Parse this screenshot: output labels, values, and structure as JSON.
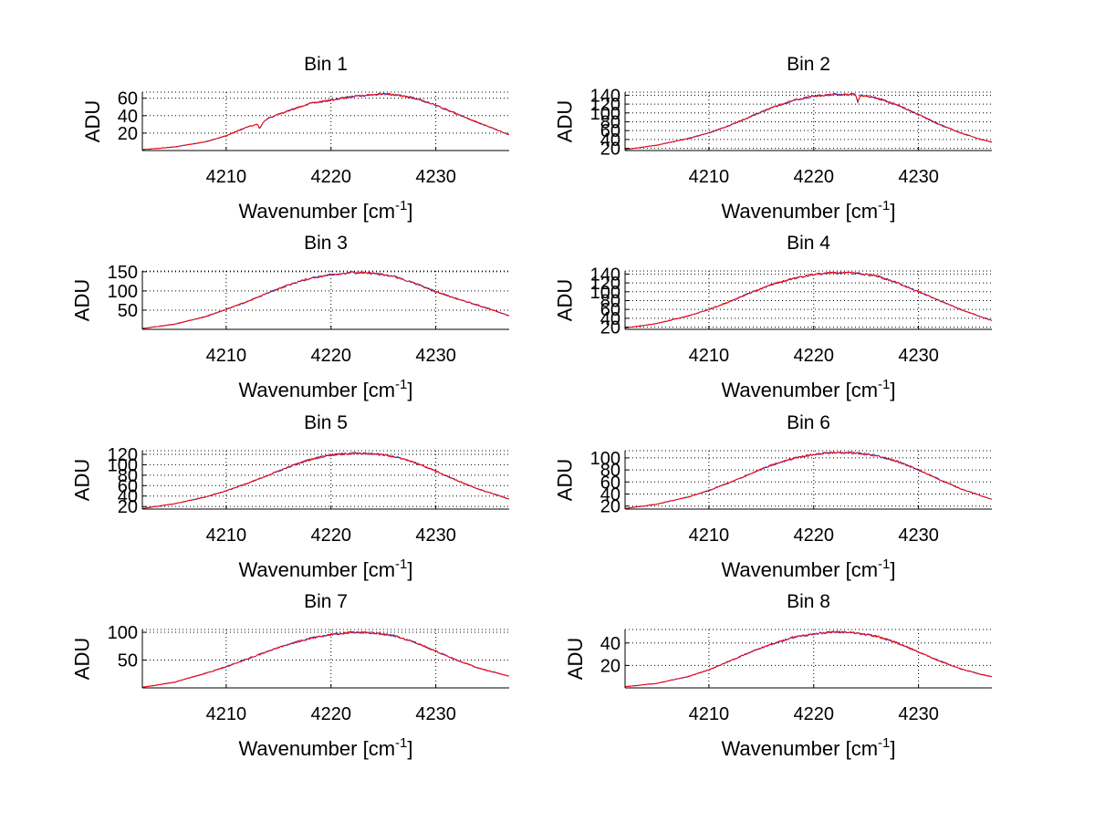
{
  "chart_data": [
    {
      "type": "line",
      "title": "Bin 1",
      "xlabel_base": "Wavenumber [cm",
      "xlabel_sup": "-1",
      "xlabel_close": "]",
      "ylabel": "ADU",
      "xlim": [
        4202,
        4237
      ],
      "ylim": [
        0,
        67
      ],
      "xticks": [
        4210,
        4220,
        4230
      ],
      "yticks": [
        20,
        40,
        60
      ],
      "grid": true,
      "x": [
        4202,
        4205,
        4208,
        4210,
        4212,
        4213,
        4213.2,
        4213.5,
        4214,
        4216,
        4218,
        4220,
        4222,
        4224,
        4225,
        4226,
        4228,
        4230,
        4232,
        4234,
        4236,
        4237
      ],
      "y": [
        1,
        4,
        10,
        17,
        27,
        30,
        25,
        32,
        37,
        46,
        54,
        58,
        62,
        64,
        65,
        64,
        60,
        52,
        42,
        32,
        23,
        18
      ],
      "series": [
        {
          "name": "",
          "color": "#1f3fd6"
        },
        {
          "name": "",
          "color": "#ff0000"
        }
      ]
    },
    {
      "type": "line",
      "title": "Bin 2",
      "xlabel_base": "Wavenumber [cm",
      "xlabel_sup": "-1",
      "xlabel_close": "]",
      "ylabel": "ADU",
      "xlim": [
        4202,
        4237
      ],
      "ylim": [
        15,
        147
      ],
      "xticks": [
        4210,
        4220,
        4230
      ],
      "yticks": [
        20,
        40,
        60,
        80,
        100,
        120,
        140
      ],
      "grid": true,
      "x": [
        4202,
        4205,
        4208,
        4210,
        4212,
        4214,
        4216,
        4218,
        4220,
        4222,
        4224,
        4224.2,
        4224.5,
        4226,
        4228,
        4230,
        4232,
        4234,
        4236,
        4237
      ],
      "y": [
        17,
        27,
        42,
        55,
        72,
        92,
        112,
        128,
        138,
        142,
        142,
        125,
        140,
        134,
        118,
        96,
        74,
        55,
        40,
        34
      ],
      "series": [
        {
          "name": "",
          "color": "#1f3fd6"
        },
        {
          "name": "",
          "color": "#ff0000"
        }
      ]
    },
    {
      "type": "line",
      "title": "Bin 3",
      "xlabel_base": "Wavenumber [cm",
      "xlabel_sup": "-1",
      "xlabel_close": "]",
      "ylabel": "ADU",
      "xlim": [
        4202,
        4237
      ],
      "ylim": [
        0,
        152
      ],
      "xticks": [
        4210,
        4220,
        4230
      ],
      "yticks": [
        50,
        100,
        150
      ],
      "grid": true,
      "x": [
        4202,
        4205,
        4208,
        4210,
        4212,
        4214,
        4216,
        4218,
        4220,
        4222,
        4224,
        4226,
        4228,
        4230,
        4232,
        4234,
        4236,
        4237
      ],
      "y": [
        2,
        13,
        33,
        52,
        72,
        95,
        116,
        133,
        142,
        148,
        146,
        138,
        120,
        98,
        80,
        63,
        45,
        35
      ],
      "series": [
        {
          "name": "",
          "color": "#1f3fd6"
        },
        {
          "name": "",
          "color": "#ff0000"
        }
      ]
    },
    {
      "type": "line",
      "title": "Bin 4",
      "xlabel_base": "Wavenumber [cm",
      "xlabel_sup": "-1",
      "xlabel_close": "]",
      "ylabel": "ADU",
      "xlim": [
        4202,
        4237
      ],
      "ylim": [
        15,
        147
      ],
      "xticks": [
        4210,
        4220,
        4230
      ],
      "yticks": [
        20,
        40,
        60,
        80,
        100,
        120,
        140
      ],
      "grid": true,
      "x": [
        4202,
        4205,
        4208,
        4210,
        4212,
        4214,
        4216,
        4218,
        4220,
        4222,
        4224,
        4226,
        4228,
        4230,
        4232,
        4234,
        4236,
        4237
      ],
      "y": [
        18,
        28,
        45,
        60,
        78,
        98,
        116,
        130,
        139,
        143,
        142,
        136,
        120,
        100,
        80,
        60,
        43,
        35
      ],
      "series": [
        {
          "name": "",
          "color": "#1f3fd6"
        },
        {
          "name": "",
          "color": "#ff0000"
        }
      ]
    },
    {
      "type": "line",
      "title": "Bin 5",
      "xlabel_base": "Wavenumber [cm",
      "xlabel_sup": "-1",
      "xlabel_close": "]",
      "ylabel": "ADU",
      "xlim": [
        4202,
        4237
      ],
      "ylim": [
        15,
        127
      ],
      "xticks": [
        4210,
        4220,
        4230
      ],
      "yticks": [
        20,
        40,
        60,
        80,
        100,
        120
      ],
      "grid": true,
      "x": [
        4202,
        4205,
        4208,
        4210,
        4212,
        4214,
        4216,
        4218,
        4220,
        4222,
        4224,
        4226,
        4228,
        4230,
        4232,
        4234,
        4236,
        4237
      ],
      "y": [
        16,
        25,
        38,
        50,
        64,
        80,
        96,
        110,
        119,
        122,
        121,
        116,
        104,
        88,
        70,
        54,
        41,
        34
      ],
      "series": [
        {
          "name": "",
          "color": "#1f3fd6"
        },
        {
          "name": "",
          "color": "#ff0000"
        }
      ]
    },
    {
      "type": "line",
      "title": "Bin 6",
      "xlabel_base": "Wavenumber [cm",
      "xlabel_sup": "-1",
      "xlabel_close": "]",
      "ylabel": "ADU",
      "xlim": [
        4202,
        4237
      ],
      "ylim": [
        15,
        112
      ],
      "xticks": [
        4210,
        4220,
        4230
      ],
      "yticks": [
        20,
        40,
        60,
        80,
        100
      ],
      "grid": true,
      "x": [
        4202,
        4205,
        4208,
        4210,
        4212,
        4214,
        4216,
        4218,
        4220,
        4222,
        4224,
        4226,
        4228,
        4230,
        4232,
        4234,
        4236,
        4237
      ],
      "y": [
        16,
        23,
        35,
        46,
        59,
        74,
        88,
        99,
        106,
        109,
        108,
        104,
        94,
        80,
        64,
        49,
        37,
        31
      ],
      "series": [
        {
          "name": "",
          "color": "#1f3fd6"
        },
        {
          "name": "",
          "color": "#ff0000"
        }
      ]
    },
    {
      "type": "line",
      "title": "Bin 7",
      "xlabel_base": "Wavenumber [cm",
      "xlabel_sup": "-1",
      "xlabel_close": "]",
      "ylabel": "ADU",
      "xlim": [
        4202,
        4237
      ],
      "ylim": [
        0,
        105
      ],
      "xticks": [
        4210,
        4220,
        4230
      ],
      "yticks": [
        50,
        100
      ],
      "grid": true,
      "x": [
        4202,
        4205,
        4208,
        4210,
        4212,
        4214,
        4216,
        4218,
        4220,
        4222,
        4224,
        4226,
        4228,
        4230,
        4232,
        4234,
        4236,
        4237
      ],
      "y": [
        1,
        10,
        26,
        38,
        52,
        66,
        79,
        89,
        96,
        100,
        99,
        94,
        82,
        66,
        50,
        36,
        26,
        21
      ],
      "series": [
        {
          "name": "",
          "color": "#1f3fd6"
        },
        {
          "name": "",
          "color": "#ff0000"
        }
      ]
    },
    {
      "type": "line",
      "title": "Bin 8",
      "xlabel_base": "Wavenumber [cm",
      "xlabel_sup": "-1",
      "xlabel_close": "]",
      "ylabel": "ADU",
      "xlim": [
        4202,
        4237
      ],
      "ylim": [
        0,
        52
      ],
      "xticks": [
        4210,
        4220,
        4230
      ],
      "yticks": [
        20,
        40
      ],
      "grid": true,
      "x": [
        4202,
        4205,
        4208,
        4210,
        4212,
        4214,
        4216,
        4218,
        4220,
        4222,
        4224,
        4226,
        4228,
        4230,
        4232,
        4234,
        4236,
        4237
      ],
      "y": [
        1,
        4,
        10,
        16,
        24,
        32,
        39,
        45,
        48,
        50,
        49,
        46,
        40,
        32,
        24,
        17,
        12,
        10
      ],
      "series": [
        {
          "name": "",
          "color": "#1f3fd6"
        },
        {
          "name": "",
          "color": "#ff0000"
        }
      ]
    }
  ]
}
